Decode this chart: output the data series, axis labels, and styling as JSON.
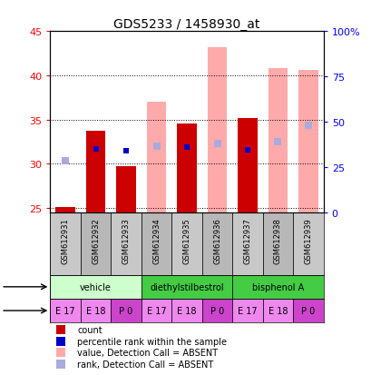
{
  "title": "GDS5233 / 1458930_at",
  "samples": [
    "GSM612931",
    "GSM612932",
    "GSM612933",
    "GSM612934",
    "GSM612935",
    "GSM612936",
    "GSM612937",
    "GSM612938",
    "GSM612939"
  ],
  "ylim_left": [
    24.5,
    45
  ],
  "ylim_right": [
    0,
    100
  ],
  "yticks_left": [
    25,
    30,
    35,
    40,
    45
  ],
  "yticks_right": [
    0,
    25,
    50,
    75,
    100
  ],
  "yticklabels_right": [
    "0",
    "25",
    "50",
    "75",
    "100%"
  ],
  "count_values": [
    25.1,
    33.7,
    29.7,
    null,
    34.6,
    null,
    35.2,
    null,
    null
  ],
  "rank_values": [
    null,
    31.7,
    31.5,
    null,
    31.9,
    null,
    31.6,
    null,
    null
  ],
  "absent_value_tops": [
    null,
    null,
    null,
    37.0,
    null,
    43.2,
    null,
    40.8,
    40.6
  ],
  "absent_rank_pts": [
    30.3,
    null,
    null,
    32.0,
    null,
    32.3,
    null,
    32.5,
    34.3
  ],
  "present_rank_pts": [
    null,
    31.7,
    31.5,
    null,
    31.9,
    null,
    31.6,
    null,
    null
  ],
  "present_count_tops": [
    25.1,
    33.7,
    29.7,
    null,
    34.6,
    null,
    35.2,
    null,
    null
  ],
  "absent_count_tops": [
    null,
    null,
    null,
    null,
    null,
    null,
    null,
    null,
    40.6
  ],
  "agents": [
    "vehicle",
    "vehicle",
    "vehicle",
    "diethylstilbestrol",
    "diethylstilbestrol",
    "diethylstilbestrol",
    "bisphenol A",
    "bisphenol A",
    "bisphenol A"
  ],
  "ages": [
    "E 17",
    "E 18",
    "P 0",
    "E 17",
    "E 18",
    "P 0",
    "E 17",
    "E 18",
    "P 0"
  ],
  "bar_width": 0.65,
  "color_count": "#cc0000",
  "color_rank": "#0000cc",
  "color_absent_value": "#ffaaaa",
  "color_absent_rank": "#aaaadd",
  "background_color": "#ffffff",
  "title_fontsize": 10,
  "vehicle_color": "#ccffcc",
  "diethyl_color": "#44cc44",
  "bisphenol_color": "#44cc44",
  "age_light": "#ee88ee",
  "age_dark": "#cc44cc"
}
